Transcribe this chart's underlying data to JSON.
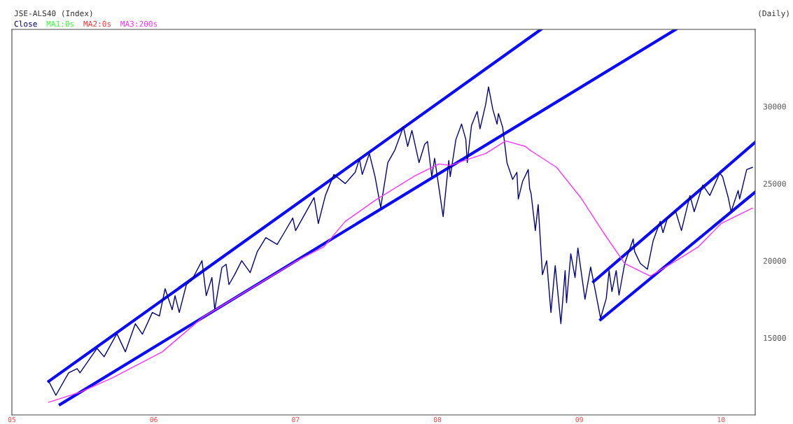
{
  "chart_data": {
    "type": "line",
    "title": "JSE-ALS40 (Index)",
    "annotations": [
      "(Daily)"
    ],
    "legend": "top left",
    "xlim": [
      2005,
      2010.24
    ],
    "xticks": [
      {
        "value": 2005,
        "label": "05"
      },
      {
        "value": 2006,
        "label": "06"
      },
      {
        "value": 2007,
        "label": "07"
      },
      {
        "value": 2008,
        "label": "08"
      },
      {
        "value": 2009,
        "label": "09"
      },
      {
        "value": 2010,
        "label": "10"
      }
    ],
    "ylim": [
      10000,
      35000
    ],
    "yticks": [
      15000,
      20000,
      25000,
      30000
    ],
    "series": [
      {
        "name": "Close",
        "color": "#000080",
        "x": [
          2005.26,
          2005.31,
          2005.4,
          2005.46,
          2005.48,
          2005.6,
          2005.65,
          2005.74,
          2005.8,
          2005.87,
          2005.92,
          2005.99,
          2006.04,
          2006.08,
          2006.13,
          2006.15,
          2006.18,
          2006.23,
          2006.27,
          2006.34,
          2006.37,
          2006.41,
          2006.43,
          2006.48,
          2006.51,
          2006.53,
          2006.57,
          2006.62,
          2006.68,
          2006.73,
          2006.79,
          2006.87,
          2006.92,
          2006.98,
          2007.0,
          2007.13,
          2007.16,
          2007.21,
          2007.27,
          2007.35,
          2007.42,
          2007.45,
          2007.47,
          2007.52,
          2007.56,
          2007.6,
          2007.65,
          2007.7,
          2007.76,
          2007.79,
          2007.82,
          2007.87,
          2007.91,
          2007.93,
          2007.96,
          2007.98,
          2008.04,
          2008.08,
          2008.09,
          2008.13,
          2008.17,
          2008.2,
          2008.21,
          2008.24,
          2008.28,
          2008.3,
          2008.34,
          2008.36,
          2008.39,
          2008.42,
          2008.43,
          2008.46,
          2008.49,
          2008.53,
          2008.56,
          2008.57,
          2008.6,
          2008.64,
          2008.65,
          2008.66,
          2008.69,
          2008.71,
          2008.74,
          2008.77,
          2008.8,
          2008.83,
          2008.87,
          2008.9,
          2008.91,
          2008.94,
          2008.97,
          2008.99,
          2009.04,
          2009.08,
          2009.11,
          2009.15,
          2009.19,
          2009.21,
          2009.23,
          2009.26,
          2009.28,
          2009.32,
          2009.38,
          2009.39,
          2009.43,
          2009.48,
          2009.52,
          2009.57,
          2009.59,
          2009.62,
          2009.68,
          2009.72,
          2009.78,
          2009.81,
          2009.87,
          2009.92,
          2009.99,
          2010.01,
          2010.05,
          2010.07,
          2010.12,
          2010.13,
          2010.18,
          2010.22
        ],
        "values": [
          12180,
          11270,
          12730,
          13000,
          12730,
          14320,
          13770,
          15270,
          14090,
          15910,
          15230,
          16640,
          16410,
          18180,
          16820,
          17730,
          16640,
          18450,
          18770,
          20000,
          17730,
          18910,
          16820,
          19550,
          19770,
          18450,
          19090,
          20000,
          19230,
          20590,
          21500,
          21050,
          21820,
          22770,
          21950,
          24090,
          22410,
          24230,
          25590,
          25000,
          25730,
          26590,
          25590,
          26950,
          25450,
          23450,
          26360,
          27180,
          28680,
          27410,
          28450,
          26360,
          27550,
          27730,
          25450,
          26640,
          22860,
          26500,
          25450,
          27860,
          28860,
          27860,
          26360,
          28770,
          29680,
          28550,
          30140,
          31270,
          29820,
          28860,
          29550,
          28640,
          26360,
          25270,
          25730,
          24000,
          25140,
          25910,
          24680,
          24360,
          21950,
          23640,
          19090,
          20000,
          16640,
          19680,
          15910,
          19360,
          17270,
          20450,
          18910,
          20820,
          17500,
          19590,
          18180,
          16270,
          17550,
          19360,
          18000,
          19360,
          17770,
          19820,
          21410,
          20590,
          19820,
          19450,
          21270,
          22550,
          21820,
          22730,
          23180,
          21950,
          24230,
          23180,
          24910,
          24230,
          25680,
          25450,
          24090,
          23180,
          24550,
          24000,
          25910,
          26050
        ]
      },
      {
        "name": "MA1:0s",
        "color": "#33ff33"
      },
      {
        "name": "MA2:0s",
        "color": "#ff3333"
      },
      {
        "name": "MA3:200s",
        "color": "#ff33ff",
        "x": [
          2005.26,
          2005.49,
          2005.71,
          2006.06,
          2006.35,
          2007.01,
          2007.2,
          2007.35,
          2007.56,
          2007.84,
          2008.01,
          2008.09,
          2008.22,
          2008.34,
          2008.48,
          2008.62,
          2008.65,
          2008.84,
          2009.01,
          2009.17,
          2009.32,
          2009.5,
          2009.65,
          2009.84,
          2010.0,
          2010.22
        ],
        "values": [
          10820,
          11500,
          12410,
          14090,
          16360,
          20000,
          20910,
          22550,
          23910,
          25500,
          26270,
          26180,
          26590,
          26950,
          27770,
          27410,
          27180,
          26050,
          24090,
          21820,
          19820,
          19000,
          19820,
          20910,
          22410,
          23410
        ]
      },
      {
        "color": "#0a0aff",
        "x": [
          2005.26,
          2008.73
        ],
        "values": [
          12180,
          35000
        ]
      },
      {
        "color": "#0a0aff",
        "x": [
          2005.34,
          2009.68
        ],
        "values": [
          10680,
          35000
        ]
      },
      {
        "color": "#0a0aff",
        "x": [
          2009.1,
          2010.24
        ],
        "values": [
          18640,
          27680
        ]
      },
      {
        "color": "#0a0aff",
        "x": [
          2009.15,
          2010.24
        ],
        "values": [
          16180,
          24450
        ]
      }
    ]
  }
}
